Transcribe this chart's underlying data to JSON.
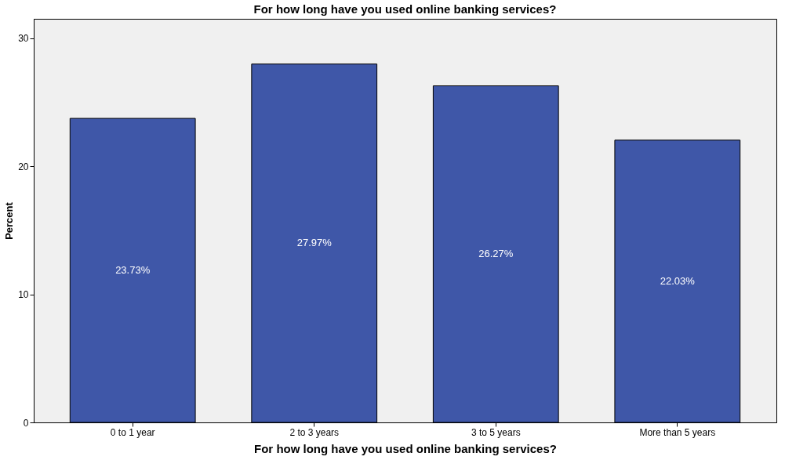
{
  "chart_data": {
    "type": "bar",
    "title": "For how long have you used online banking services?",
    "xlabel": "For how long have you used online banking services?",
    "ylabel": "Percent",
    "categories": [
      "0 to 1 year",
      "2 to 3 years",
      "3 to 5 years",
      "More than 5 years"
    ],
    "values": [
      23.73,
      27.97,
      26.27,
      22.03
    ],
    "value_labels": [
      "23.73%",
      "27.97%",
      "26.27%",
      "22.03%"
    ],
    "color": "#3f57a8",
    "ylim": [
      0,
      31.5
    ],
    "yticks": [
      0,
      10,
      20,
      30
    ],
    "grid": false
  }
}
